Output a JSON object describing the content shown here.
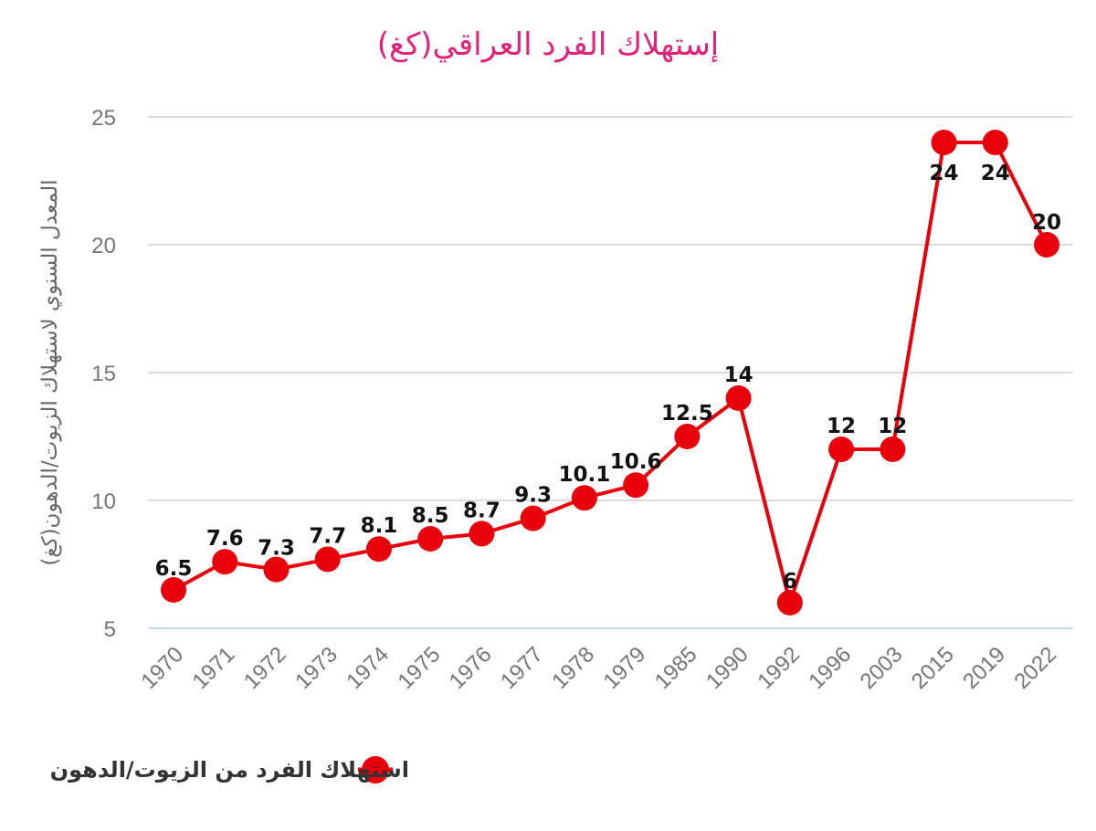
{
  "chart_data": {
    "type": "line",
    "title": "إستهلاك الفرد العراقي(كغ)",
    "xlabel": "",
    "ylabel": "المعدل السنوي لاستهلاك الزيوت/الدهون(كغ)",
    "categories": [
      "1970",
      "1971",
      "1972",
      "1973",
      "1974",
      "1975",
      "1976",
      "1977",
      "1978",
      "1979",
      "1985",
      "1990",
      "1992",
      "1996",
      "2003",
      "2015",
      "2019",
      "2022"
    ],
    "series": [
      {
        "name": "استهلاك الفرد من الزيوت/الدهون",
        "color": "#e8000b",
        "values": [
          6.5,
          7.6,
          7.3,
          7.7,
          8.1,
          8.5,
          8.7,
          9.3,
          10.1,
          10.6,
          12.5,
          14,
          6,
          12,
          12,
          24,
          24,
          20
        ]
      }
    ],
    "ylim": [
      5,
      25
    ],
    "yticks": [
      5,
      10,
      15,
      20,
      25
    ],
    "grid": true,
    "legend_position": "bottom"
  }
}
